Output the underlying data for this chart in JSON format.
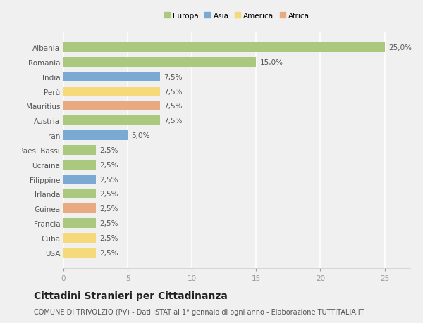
{
  "countries": [
    "Albania",
    "Romania",
    "India",
    "Perù",
    "Mauritius",
    "Austria",
    "Iran",
    "Paesi Bassi",
    "Ucraina",
    "Filippine",
    "Irlanda",
    "Guinea",
    "Francia",
    "Cuba",
    "USA"
  ],
  "values": [
    25.0,
    15.0,
    7.5,
    7.5,
    7.5,
    7.5,
    5.0,
    2.5,
    2.5,
    2.5,
    2.5,
    2.5,
    2.5,
    2.5,
    2.5
  ],
  "continents": [
    "Europa",
    "Europa",
    "Asia",
    "America",
    "Africa",
    "Europa",
    "Asia",
    "Europa",
    "Europa",
    "Asia",
    "Europa",
    "Africa",
    "Europa",
    "America",
    "America"
  ],
  "continent_colors": {
    "Europa": "#aac97e",
    "Asia": "#7aaad4",
    "America": "#f5d97a",
    "Africa": "#e8aa80"
  },
  "legend_order": [
    "Europa",
    "Asia",
    "America",
    "Africa"
  ],
  "xlim": [
    0,
    27
  ],
  "xticks": [
    0,
    5,
    10,
    15,
    20,
    25
  ],
  "title": "Cittadini Stranieri per Cittadinanza",
  "subtitle": "COMUNE DI TRIVOLZIO (PV) - Dati ISTAT al 1° gennaio di ogni anno - Elaborazione TUTTITALIA.IT",
  "bar_height": 0.65,
  "background_color": "#f0f0f0",
  "grid_color": "#ffffff",
  "label_fontsize": 7.5,
  "title_fontsize": 10,
  "subtitle_fontsize": 7
}
